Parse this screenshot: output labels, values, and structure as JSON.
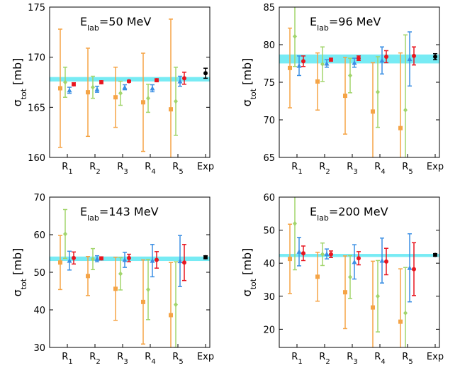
{
  "chart_data": [
    {
      "type": "errorbar",
      "title": [
        {
          "text": "E"
        },
        {
          "text": "lab",
          "sub": true
        },
        {
          "text": "=50 MeV"
        }
      ],
      "ylabel": [
        {
          "text": "σ"
        },
        {
          "text": "tot",
          "sub": true
        },
        {
          "text": " [mb]"
        }
      ],
      "categories": [
        "R1",
        "R2",
        "R3",
        "R4",
        "R5",
        "Exp"
      ],
      "ylim": [
        160,
        175
      ],
      "yticks": [
        160,
        165,
        170,
        175
      ],
      "band": {
        "values": [
          167.65,
          167.95
        ],
        "color": "#5fe8f2"
      },
      "series": [
        {
          "color": "#f5a446",
          "marker": "square",
          "values": [
            166.9,
            166.5,
            166.0,
            165.5,
            164.8,
            null
          ],
          "errors": [
            5.9,
            4.4,
            3.0,
            4.9,
            9.0,
            null
          ]
        },
        {
          "color": "#a2d56c",
          "marker": "diamond",
          "values": [
            167.5,
            167.0,
            166.4,
            165.9,
            165.6,
            null
          ],
          "errors": [
            1.5,
            1.1,
            1.2,
            1.4,
            3.4,
            null
          ]
        },
        {
          "color": "#3b8fe4",
          "marker": "triangle",
          "values": [
            166.7,
            166.8,
            167.0,
            166.9,
            167.6,
            null
          ],
          "errors": [
            0.3,
            0.3,
            0.25,
            0.35,
            0.5,
            null
          ]
        },
        {
          "color": "#e8151f",
          "marker": "circle",
          "values": [
            167.3,
            167.5,
            167.6,
            167.7,
            167.9,
            null
          ],
          "errors": [
            0.15,
            0.15,
            0.1,
            0.15,
            0.6,
            null
          ]
        },
        {
          "color": "#000000",
          "marker": "circle",
          "values": [
            null,
            null,
            null,
            null,
            null,
            168.4
          ],
          "errors": [
            null,
            null,
            null,
            null,
            null,
            0.5
          ]
        }
      ]
    },
    {
      "type": "errorbar",
      "title": [
        {
          "text": "E"
        },
        {
          "text": "lab",
          "sub": true
        },
        {
          "text": "=96 MeV"
        }
      ],
      "ylabel": [
        {
          "text": "σ"
        },
        {
          "text": "tot",
          "sub": true
        },
        {
          "text": " [mb]"
        }
      ],
      "categories": [
        "R1",
        "R2",
        "R3",
        "R4",
        "R5",
        "Exp"
      ],
      "ylim": [
        65,
        85
      ],
      "yticks": [
        65,
        70,
        75,
        80,
        85
      ],
      "band": {
        "values": [
          77.6,
          78.6
        ],
        "color": "#5fe8f2"
      },
      "series": [
        {
          "color": "#f5a446",
          "marker": "square",
          "values": [
            76.9,
            75.1,
            73.2,
            71.1,
            68.9,
            null
          ],
          "errors": [
            5.3,
            3.8,
            5.1,
            6.5,
            10.0,
            null
          ]
        },
        {
          "color": "#a2d56c",
          "marker": "diamond",
          "values": [
            81.1,
            77.4,
            75.9,
            73.7,
            71.3,
            null
          ],
          "errors": [
            4.0,
            2.3,
            2.3,
            4.7,
            10.0,
            null
          ]
        },
        {
          "color": "#3b8fe4",
          "marker": "triangle",
          "values": [
            77.2,
            77.5,
            77.6,
            77.9,
            78.1,
            null
          ],
          "errors": [
            1.3,
            0.5,
            0.6,
            1.8,
            3.6,
            null
          ]
        },
        {
          "color": "#e8151f",
          "marker": "circle",
          "values": [
            77.8,
            78.0,
            78.2,
            78.4,
            78.5,
            null
          ],
          "errors": [
            0.7,
            0.2,
            0.3,
            0.8,
            1.2,
            null
          ]
        },
        {
          "color": "#000000",
          "marker": "circle",
          "values": [
            null,
            null,
            null,
            null,
            null,
            78.4
          ],
          "errors": [
            null,
            null,
            null,
            null,
            null,
            0.4
          ]
        }
      ]
    },
    {
      "type": "errorbar",
      "title": [
        {
          "text": "E"
        },
        {
          "text": "lab",
          "sub": true
        },
        {
          "text": "=143 MeV"
        }
      ],
      "ylabel": [
        {
          "text": "σ"
        },
        {
          "text": "tot",
          "sub": true
        },
        {
          "text": " [mb]"
        }
      ],
      "categories": [
        "R1",
        "R2",
        "R3",
        "R4",
        "R5",
        "Exp"
      ],
      "ylim": [
        30,
        70
      ],
      "yticks": [
        30,
        40,
        50,
        60,
        70
      ],
      "band": {
        "values": [
          53.2,
          54.0
        ],
        "color": "#5fe8f2"
      },
      "series": [
        {
          "color": "#f5a446",
          "marker": "square",
          "values": [
            52.6,
            49.0,
            45.6,
            42.1,
            38.6,
            null
          ],
          "errors": [
            7.2,
            5.2,
            8.4,
            11.2,
            14.0,
            null
          ]
        },
        {
          "color": "#a2d56c",
          "marker": "diamond",
          "values": [
            60.2,
            53.5,
            49.6,
            45.4,
            41.4,
            null
          ],
          "errors": [
            6.5,
            2.8,
            4.3,
            8.0,
            11.4,
            null
          ]
        },
        {
          "color": "#3b8fe4",
          "marker": "triangle",
          "values": [
            53.1,
            53.6,
            53.3,
            53.1,
            53.0,
            null
          ],
          "errors": [
            2.5,
            0.8,
            2.0,
            4.3,
            6.8,
            null
          ]
        },
        {
          "color": "#e8151f",
          "marker": "circle",
          "values": [
            53.8,
            53.7,
            53.8,
            53.3,
            52.6,
            null
          ],
          "errors": [
            1.6,
            0.4,
            1.0,
            2.2,
            4.8,
            null
          ]
        },
        {
          "color": "#000000",
          "marker": "circle",
          "values": [
            null,
            null,
            null,
            null,
            null,
            54.0
          ],
          "errors": [
            null,
            null,
            null,
            null,
            null,
            0.4
          ]
        }
      ]
    },
    {
      "type": "errorbar",
      "title": [
        {
          "text": "E"
        },
        {
          "text": "lab",
          "sub": true
        },
        {
          "text": "=200 MeV"
        }
      ],
      "ylabel": [
        {
          "text": "σ"
        },
        {
          "text": "tot",
          "sub": true
        },
        {
          "text": " [mb]"
        }
      ],
      "categories": [
        "R1",
        "R2",
        "R3",
        "R4",
        "R5",
        "Exp"
      ],
      "ylim": [
        14.5,
        60
      ],
      "yticks": [
        20,
        30,
        40,
        50,
        60
      ],
      "band": {
        "values": [
          42.1,
          42.6
        ],
        "color": "#5fe8f2"
      },
      "series": [
        {
          "color": "#f5a446",
          "marker": "square",
          "values": [
            41.3,
            35.9,
            31.2,
            26.6,
            22.3,
            null
          ],
          "errors": [
            10.5,
            7.4,
            11.0,
            14.0,
            16.0,
            null
          ]
        },
        {
          "color": "#a2d56c",
          "marker": "diamond",
          "values": [
            52.0,
            42.7,
            35.8,
            30.0,
            24.9,
            null
          ],
          "errors": [
            14.0,
            3.4,
            6.5,
            10.8,
            13.8,
            null
          ]
        },
        {
          "color": "#3b8fe4",
          "marker": "triangle",
          "values": [
            43.5,
            42.8,
            40.4,
            40.8,
            38.6,
            null
          ],
          "errors": [
            4.3,
            1.5,
            5.2,
            6.8,
            10.3,
            null
          ]
        },
        {
          "color": "#e8151f",
          "marker": "circle",
          "values": [
            43.0,
            42.7,
            41.5,
            40.5,
            38.2,
            null
          ],
          "errors": [
            2.2,
            1.0,
            2.0,
            4.0,
            8.0,
            null
          ]
        },
        {
          "color": "#000000",
          "marker": "circle",
          "values": [
            null,
            null,
            null,
            null,
            null,
            42.5
          ],
          "errors": [
            null,
            null,
            null,
            null,
            null,
            0.4
          ]
        }
      ]
    }
  ]
}
